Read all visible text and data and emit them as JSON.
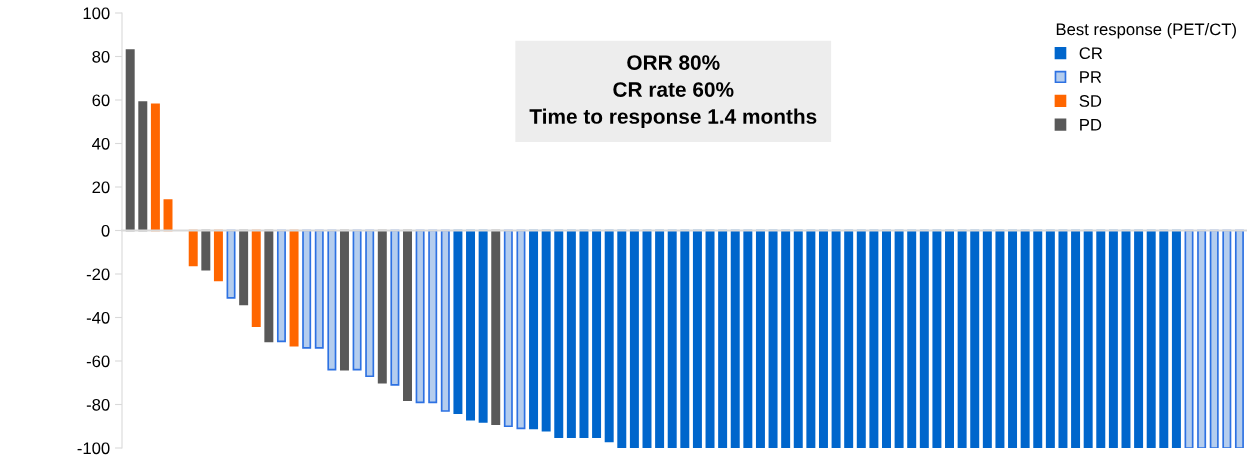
{
  "chart_data": {
    "type": "bar",
    "categories": [
      null,
      null,
      null,
      null,
      null,
      null,
      null,
      null,
      null,
      null,
      null,
      null,
      null,
      null,
      null,
      null,
      null,
      null,
      null,
      null,
      null,
      null,
      null,
      null,
      null,
      null,
      null,
      null,
      null,
      null,
      null,
      null,
      null,
      null,
      null,
      null,
      null,
      null,
      null,
      null,
      null,
      null,
      null,
      null,
      null,
      null,
      null,
      null,
      null,
      null,
      null,
      null,
      null,
      null,
      null,
      null,
      null,
      null,
      null,
      null,
      null,
      null,
      null,
      null,
      null,
      null,
      null,
      null,
      null,
      null,
      null,
      null,
      null,
      null,
      null,
      null,
      null,
      null,
      null,
      null,
      null,
      null,
      null,
      null,
      null,
      null,
      null,
      null,
      null
    ],
    "series": [
      {
        "name": "CR",
        "color": "#0066cc",
        "values": [
          null,
          null,
          null,
          null,
          null,
          null,
          null,
          null,
          null,
          null,
          null,
          null,
          null,
          null,
          null,
          null,
          null,
          null,
          null,
          null,
          null,
          null,
          null,
          null,
          null,
          null,
          -84,
          -87,
          -88,
          null,
          null,
          null,
          -91,
          -92,
          -95,
          -95,
          -95,
          -95,
          -97,
          -100,
          -100,
          -100,
          -100,
          -100,
          -100,
          -100,
          -100,
          -100,
          -100,
          -100,
          -100,
          -100,
          -100,
          -100,
          -100,
          -100,
          -100,
          -100,
          -100,
          -100,
          -100,
          -100,
          -100,
          -100,
          -100,
          -100,
          -100,
          -100,
          -100,
          -100,
          -100,
          -100,
          -100,
          -100,
          -100,
          -100,
          -100,
          -100,
          -100,
          -100,
          -100,
          -100,
          -100,
          -100,
          null,
          null,
          null,
          null,
          null
        ]
      },
      {
        "name": "PR",
        "color": "#b4cdee",
        "values": [
          null,
          null,
          null,
          null,
          null,
          null,
          null,
          null,
          -31,
          null,
          null,
          null,
          -51,
          null,
          -54,
          -54,
          -64,
          null,
          -64,
          -67,
          null,
          -71,
          null,
          -79,
          -79,
          -83,
          null,
          null,
          null,
          null,
          -90,
          -91,
          null,
          null,
          null,
          null,
          null,
          null,
          null,
          null,
          null,
          null,
          null,
          null,
          null,
          null,
          null,
          null,
          null,
          null,
          null,
          null,
          null,
          null,
          null,
          null,
          null,
          null,
          null,
          null,
          null,
          null,
          null,
          null,
          null,
          null,
          null,
          null,
          null,
          null,
          null,
          null,
          null,
          null,
          null,
          null,
          null,
          null,
          null,
          null,
          null,
          null,
          null,
          null,
          -100,
          -100,
          -100,
          -100,
          -100
        ]
      },
      {
        "name": "SD",
        "color": "#ff6600",
        "values": [
          null,
          null,
          58,
          14,
          null,
          -16,
          null,
          -23,
          null,
          null,
          -44,
          null,
          null,
          -53,
          null,
          null,
          null,
          null,
          null,
          null,
          null,
          null,
          null,
          null,
          null,
          null,
          null,
          null,
          null,
          null,
          null,
          null,
          null,
          null,
          null,
          null,
          null,
          null,
          null,
          null,
          null,
          null,
          null,
          null,
          null,
          null,
          null,
          null,
          null,
          null,
          null,
          null,
          null,
          null,
          null,
          null,
          null,
          null,
          null,
          null,
          null,
          null,
          null,
          null,
          null,
          null,
          null,
          null,
          null,
          null,
          null,
          null,
          null,
          null,
          null,
          null,
          null,
          null,
          null,
          null,
          null,
          null,
          null,
          null,
          null,
          null,
          null,
          null,
          null
        ]
      },
      {
        "name": "PD",
        "color": "#595959",
        "values": [
          83,
          59,
          null,
          null,
          null,
          null,
          -18,
          null,
          null,
          -34,
          null,
          -51,
          null,
          null,
          null,
          null,
          null,
          -64,
          null,
          null,
          -70,
          null,
          -78,
          null,
          null,
          null,
          null,
          null,
          null,
          -89,
          null,
          null,
          null,
          null,
          null,
          null,
          null,
          null,
          null,
          null,
          null,
          null,
          null,
          null,
          null,
          null,
          null,
          null,
          null,
          null,
          null,
          null,
          null,
          null,
          null,
          null,
          null,
          null,
          null,
          null,
          null,
          null,
          null,
          null,
          null,
          null,
          null,
          null,
          null,
          null,
          null,
          null,
          null,
          null,
          null,
          null,
          null,
          null,
          null,
          null,
          null,
          null,
          null,
          null,
          null,
          null,
          null,
          null,
          null
        ]
      }
    ],
    "ylim": [
      -100,
      100
    ],
    "yticks": [
      -100,
      -80,
      -60,
      -40,
      -20,
      0,
      20,
      40,
      60,
      80,
      100
    ],
    "legend": "top right",
    "legend_title": "Best response (PET/CT)",
    "annotations": [
      "ORR 80%\nCR rate 60%\nTime to response 1.4 months"
    ]
  }
}
